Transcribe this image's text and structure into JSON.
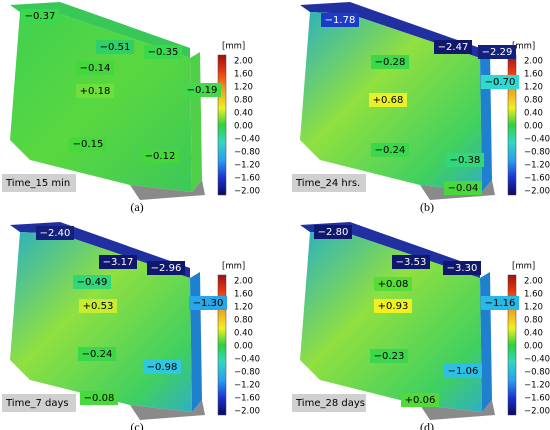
{
  "colorbar": {
    "unit": "[mm]",
    "ticks": [
      "2.00",
      "1.60",
      "1.20",
      "0.80",
      "0.40",
      "0.00",
      "−0.40",
      "−0.80",
      "−1.20",
      "−1.60",
      "−2.00"
    ]
  },
  "panels": [
    {
      "time": "Time_15 min",
      "caption": "(a)",
      "labels": [
        {
          "text": "−0.37",
          "bg": "#3ad84a",
          "fg": "#000"
        },
        {
          "text": "−0.51",
          "bg": "#2fd06a",
          "fg": "#000"
        },
        {
          "text": "−0.35",
          "bg": "#3ad84a",
          "fg": "#000"
        },
        {
          "text": "−0.14",
          "bg": "#44d83c",
          "fg": "#000"
        },
        {
          "text": "+0.18",
          "bg": "#6ee03a",
          "fg": "#000"
        },
        {
          "text": "−0.19",
          "bg": "#44d84a",
          "fg": "#000"
        },
        {
          "text": "−0.15",
          "bg": "#44d83c",
          "fg": "#000"
        },
        {
          "text": "−0.12",
          "bg": "#44d83c",
          "fg": "#000"
        }
      ]
    },
    {
      "time": "Time_24 hrs.",
      "caption": "(b)",
      "labels": [
        {
          "text": "−1.78",
          "bg": "#1a3cc8",
          "fg": "#fff"
        },
        {
          "text": "−2.47",
          "bg": "#10186e",
          "fg": "#fff"
        },
        {
          "text": "−2.29",
          "bg": "#12207e",
          "fg": "#fff"
        },
        {
          "text": "−0.28",
          "bg": "#3ad84a",
          "fg": "#000"
        },
        {
          "text": "+0.68",
          "bg": "#e8f02a",
          "fg": "#000"
        },
        {
          "text": "−0.70",
          "bg": "#30d8d0",
          "fg": "#000"
        },
        {
          "text": "−0.24",
          "bg": "#3ad84a",
          "fg": "#000"
        },
        {
          "text": "−0.38",
          "bg": "#34d67a",
          "fg": "#000"
        },
        {
          "text": "−0.04",
          "bg": "#48da3c",
          "fg": "#000"
        }
      ]
    },
    {
      "time": "Time_7 days",
      "caption": "(c)",
      "labels": [
        {
          "text": "−2.40",
          "bg": "#12207e",
          "fg": "#fff"
        },
        {
          "text": "−3.17",
          "bg": "#10186e",
          "fg": "#fff"
        },
        {
          "text": "−2.96",
          "bg": "#10186e",
          "fg": "#fff"
        },
        {
          "text": "−0.49",
          "bg": "#34d67a",
          "fg": "#000"
        },
        {
          "text": "+0.53",
          "bg": "#c8ec30",
          "fg": "#000"
        },
        {
          "text": "−1.30",
          "bg": "#2aa6e8",
          "fg": "#000"
        },
        {
          "text": "−0.24",
          "bg": "#3ad84a",
          "fg": "#000"
        },
        {
          "text": "−0.98",
          "bg": "#2ec8e0",
          "fg": "#000"
        },
        {
          "text": "−0.08",
          "bg": "#48da3c",
          "fg": "#000"
        }
      ]
    },
    {
      "time": "Time_28 days",
      "caption": "(d)",
      "labels": [
        {
          "text": "−2.80",
          "bg": "#10186e",
          "fg": "#fff"
        },
        {
          "text": "−3.53",
          "bg": "#10186e",
          "fg": "#fff"
        },
        {
          "text": "−3.30",
          "bg": "#10186e",
          "fg": "#fff"
        },
        {
          "text": "+0.08",
          "bg": "#58dc38",
          "fg": "#000"
        },
        {
          "text": "+0.93",
          "bg": "#f0f020",
          "fg": "#000"
        },
        {
          "text": "−1.16",
          "bg": "#2ab8e6",
          "fg": "#000"
        },
        {
          "text": "−0.23",
          "bg": "#3ad84a",
          "fg": "#000"
        },
        {
          "text": "−1.06",
          "bg": "#2ec0e4",
          "fg": "#000"
        },
        {
          "text": "+0.06",
          "bg": "#52da3a",
          "fg": "#000"
        }
      ]
    }
  ]
}
